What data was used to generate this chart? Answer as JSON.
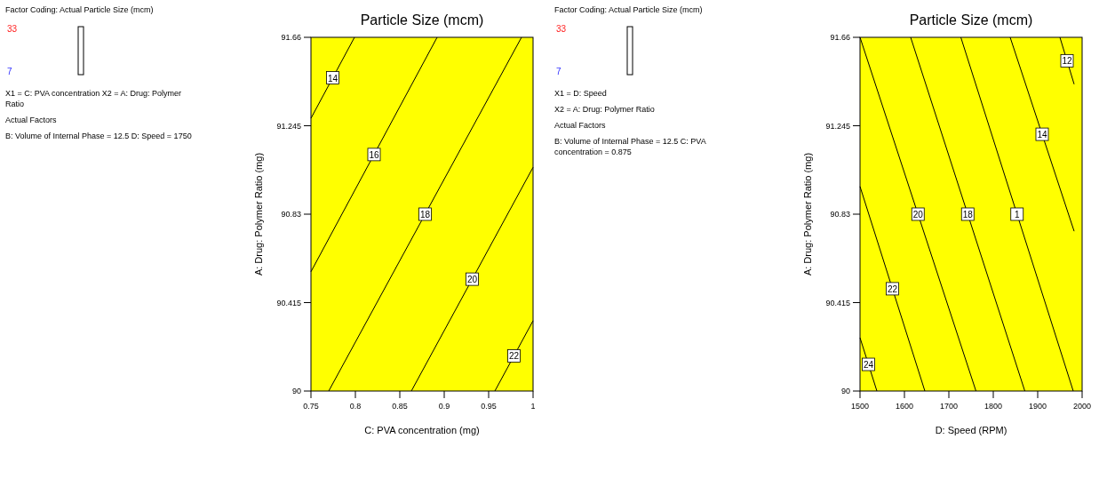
{
  "chart_data": [
    {
      "type": "line",
      "title": "Particle Size (mcm)",
      "xlabel": "C: PVA concentration (mg)",
      "ylabel": "A: Drug: Polymer Ratio (mg)",
      "xlim": [
        0.75,
        1
      ],
      "xticks": [
        0.75,
        0.8,
        0.85,
        0.9,
        0.95,
        1
      ],
      "ylim": [
        90,
        91.66
      ],
      "yticks": [
        90,
        90.415,
        90.83,
        91.245,
        91.66
      ],
      "annotations": [
        "Factor Coding: Actual Particle Size (mcm)",
        "33",
        "7",
        "X1 = C: PVA concentration X2 = A: Drug: Polymer Ratio",
        "Actual Factors",
        "B: Volume of Internal Phase = 12.5 D: Speed = 1750"
      ],
      "series": [
        {
          "name": "14",
          "color": "#000000",
          "x": [
            0.75,
            0.799
          ],
          "values": [
            91.28,
            91.66
          ]
        },
        {
          "name": "16",
          "color": "#000000",
          "x": [
            0.75,
            0.892
          ],
          "values": [
            90.56,
            91.66
          ]
        },
        {
          "name": "18",
          "color": "#000000",
          "x": [
            0.77,
            0.987
          ],
          "values": [
            90,
            91.66
          ]
        },
        {
          "name": "20",
          "color": "#000000",
          "x": [
            0.863,
            1
          ],
          "values": [
            90,
            91.05
          ]
        },
        {
          "name": "22",
          "color": "#000000",
          "x": [
            0.957,
            1
          ],
          "values": [
            90,
            90.33
          ]
        }
      ]
    },
    {
      "type": "line",
      "title": "Particle Size (mcm)",
      "xlabel": "D: Speed (RPM)",
      "ylabel": "A: Drug: Polymer Ratio (mg)",
      "xlim": [
        1500,
        2000
      ],
      "xticks": [
        1500,
        1600,
        1700,
        1800,
        1900,
        2000
      ],
      "ylim": [
        90,
        91.66
      ],
      "yticks": [
        90,
        90.415,
        90.83,
        91.245,
        91.66
      ],
      "annotations": [
        "Factor Coding: Actual Particle Size (mcm)",
        "33",
        "7",
        "X1 = D: Speed",
        "X2 = A: Drug: Polymer Ratio",
        "Actual Factors",
        "B: Volume of Internal Phase = 12.5 C: PVA concentration = 0.875"
      ],
      "series": [
        {
          "name": "24",
          "color": "#000000",
          "x": [
            1500,
            1538
          ],
          "values": [
            90.25,
            90
          ]
        },
        {
          "name": "22",
          "color": "#000000",
          "x": [
            1500,
            1646
          ],
          "values": [
            90.96,
            90
          ]
        },
        {
          "name": "20",
          "color": "#000000",
          "x": [
            1500,
            1761
          ],
          "values": [
            91.66,
            90
          ]
        },
        {
          "name": "18",
          "color": "#000000",
          "x": [
            1614,
            1871
          ],
          "values": [
            91.66,
            90
          ]
        },
        {
          "name": "1",
          "color": "#000000",
          "x": [
            1727,
            1980
          ],
          "values": [
            91.66,
            90
          ]
        },
        {
          "name": "14",
          "color": "#000000",
          "x": [
            1838,
            1982
          ],
          "values": [
            91.66,
            90.75
          ]
        },
        {
          "name": "12",
          "color": "#000000",
          "x": [
            1950,
            1982
          ],
          "values": [
            91.66,
            91.44
          ]
        }
      ]
    }
  ]
}
